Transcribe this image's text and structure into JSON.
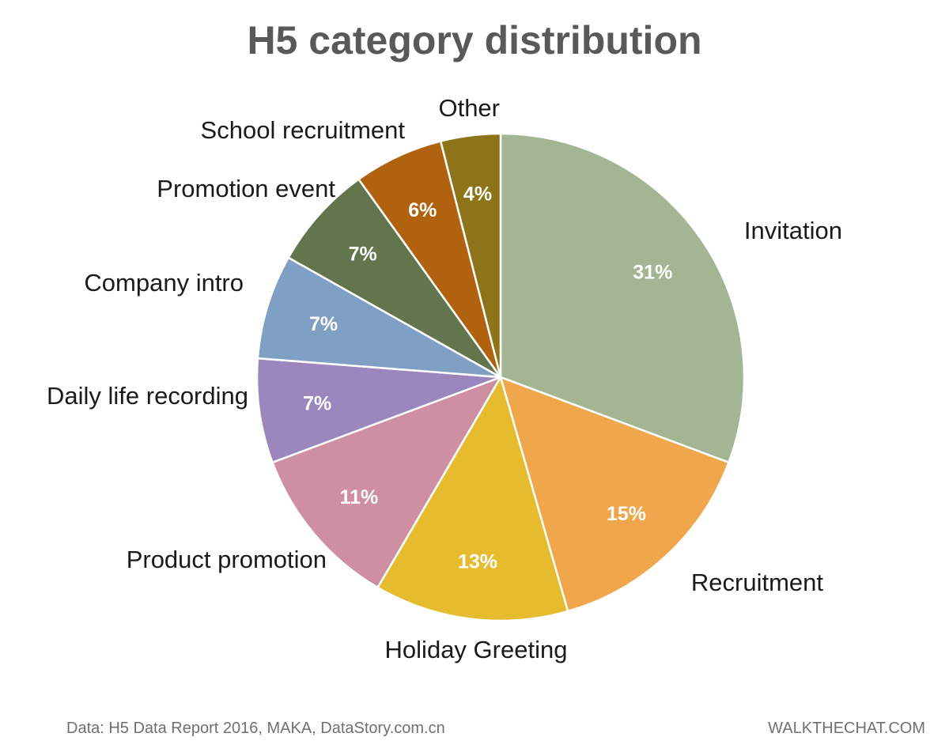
{
  "chart_data": {
    "type": "pie",
    "title": "H5 category distribution",
    "slices": [
      {
        "label": "Invitation",
        "value": 31,
        "value_label": "31%",
        "color": "#a3b592"
      },
      {
        "label": "Recruitment",
        "value": 15,
        "value_label": "15%",
        "color": "#f0a64a"
      },
      {
        "label": "Holiday Greeting",
        "value": 13,
        "value_label": "13%",
        "color": "#e6bb2d"
      },
      {
        "label": "Product promotion",
        "value": 11,
        "value_label": "11%",
        "color": "#cf8fa3"
      },
      {
        "label": "Daily life recording",
        "value": 7,
        "value_label": "7%",
        "color": "#9b86bd"
      },
      {
        "label": "Company intro",
        "value": 7,
        "value_label": "7%",
        "color": "#809fc4"
      },
      {
        "label": "Promotion event",
        "value": 7,
        "value_label": "7%",
        "color": "#62754d"
      },
      {
        "label": "School recruitment",
        "value": 6,
        "value_label": "6%",
        "color": "#b0620f"
      },
      {
        "label": "Other",
        "value": 4,
        "value_label": "4%",
        "color": "#8d7418"
      }
    ],
    "legend": "none"
  },
  "footer": {
    "source": "Data: H5 Data Report 2016, MAKA, DataStory.com.cn",
    "brand": "WALKTHECHAT.COM"
  }
}
